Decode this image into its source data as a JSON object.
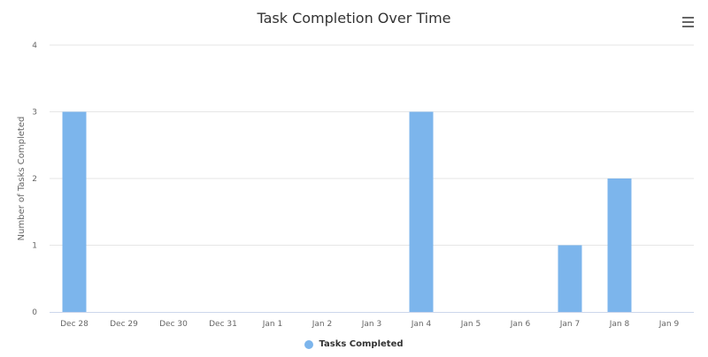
{
  "chart_data": {
    "type": "bar",
    "title": "Task Completion Over Time",
    "xlabel": "",
    "ylabel": "Number of Tasks Completed",
    "categories": [
      "Dec 28",
      "Dec 29",
      "Dec 30",
      "Dec 31",
      "Jan 1",
      "Jan 2",
      "Jan 3",
      "Jan 4",
      "Jan 5",
      "Jan 6",
      "Jan 7",
      "Jan 8",
      "Jan 9"
    ],
    "series": [
      {
        "name": "Tasks Completed",
        "values": [
          3,
          0,
          0,
          0,
          0,
          0,
          0,
          3,
          0,
          0,
          1,
          2,
          0
        ],
        "color": "#7cb5ec"
      }
    ],
    "ylim": [
      0,
      4
    ],
    "yticks": [
      0,
      1,
      2,
      3,
      4
    ],
    "grid": true,
    "legend": "bottom-center"
  },
  "colors": {
    "bar": "#7cb5ec",
    "grid": "#e6e6e6",
    "axis_text": "#666666",
    "title_text": "#333333"
  },
  "icons": {
    "menu": "hamburger-menu-icon"
  }
}
